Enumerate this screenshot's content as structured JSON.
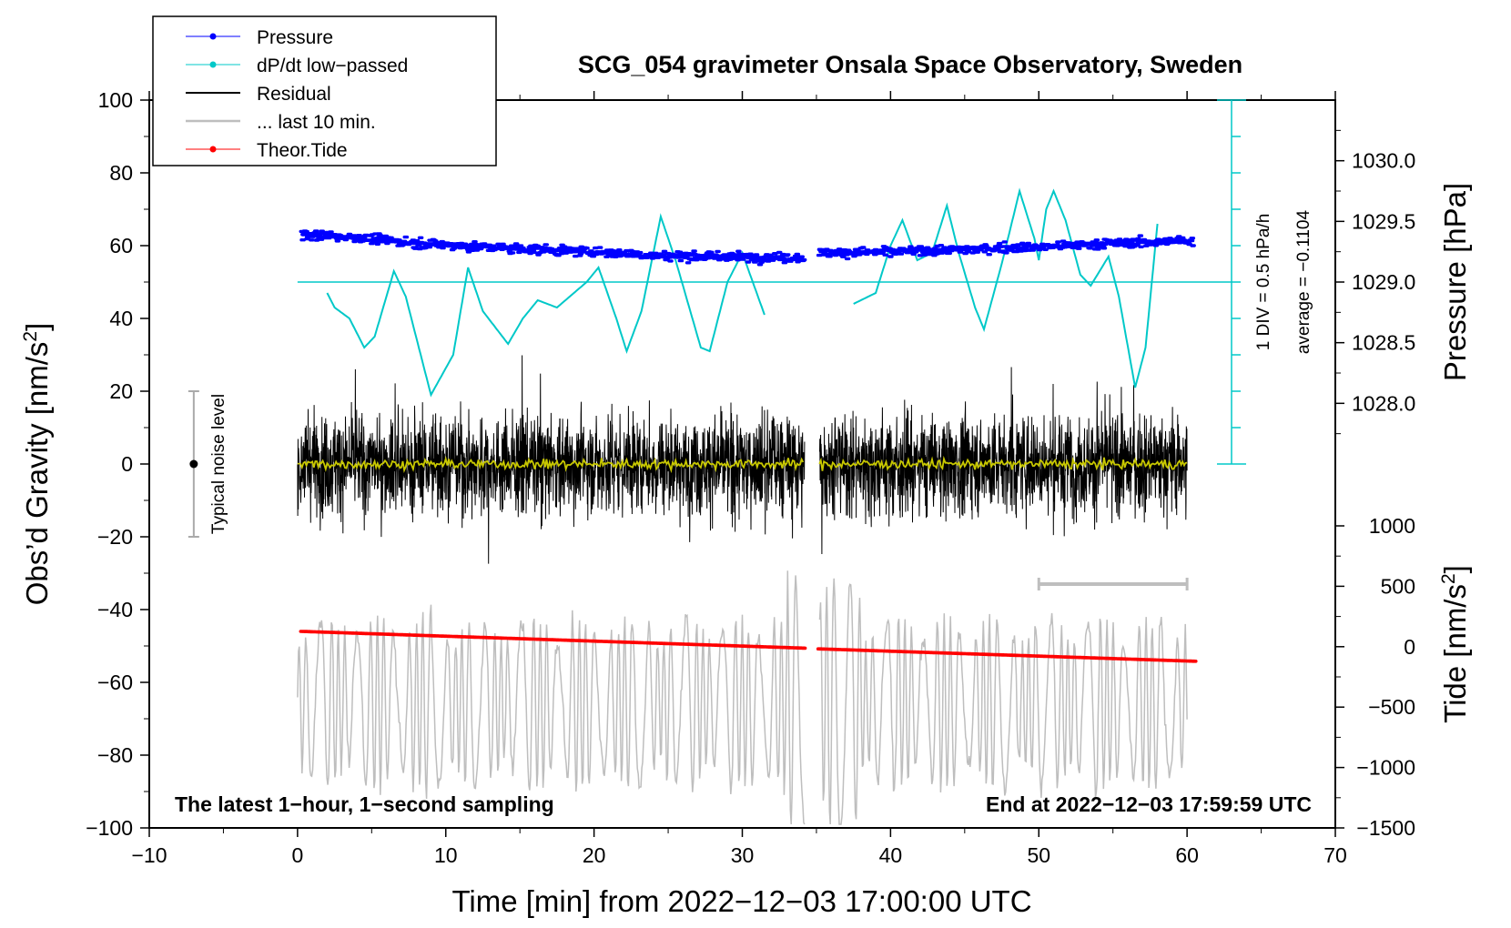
{
  "chart_data": {
    "type": "line",
    "title": "SCG_054 gravimeter Onsala Space Observatory, Sweden",
    "xlabel": "Time [min] from 2022−12−03 17:00:00 UTC",
    "ylabel_left": "Obs’d Gravity [nm/s",
    "ylabel_left_sup": "2",
    "ylabel_left_end": "]",
    "ylabel_right_top": "Pressure [hPa]",
    "ylabel_right_bottom": "Tide [nm/s",
    "ylabel_right_bottom_sup": "2",
    "ylabel_right_bottom_end": "]",
    "xlim": [
      -10,
      70
    ],
    "ylim": [
      -100,
      100
    ],
    "x_ticks": [
      -10,
      0,
      10,
      20,
      30,
      40,
      50,
      60,
      70
    ],
    "x_tick_labels": [
      "−10",
      "0",
      "10",
      "20",
      "30",
      "40",
      "50",
      "60",
      "70"
    ],
    "y_ticks": [
      100,
      80,
      60,
      40,
      20,
      0,
      -20,
      -40,
      -60,
      -80,
      -100
    ],
    "y_tick_labels": [
      "100",
      "80",
      "60",
      "40",
      "20",
      "0",
      "−20",
      "−40",
      "−60",
      "−80",
      "−100"
    ],
    "pressure_ticks": [
      1030.0,
      1029.5,
      1029.0,
      1028.5,
      1028.0
    ],
    "pressure_tick_labels": [
      "1030.0",
      "1029.5",
      "1029.0",
      "1028.5",
      "1028.0"
    ],
    "pressure_axis_map": {
      "p1": 1029.0,
      "g1": 50,
      "p2": 1030.0,
      "g2": 83.33
    },
    "tide_ticks": [
      1000,
      500,
      0,
      -500,
      -1000,
      -1500
    ],
    "tide_tick_labels": [
      "1000",
      "500",
      "0",
      "−500",
      "−1000",
      "−1500"
    ],
    "tide_axis_map": {
      "t1": -1500,
      "g1": -100,
      "t2": 1000,
      "g2": -17
    },
    "legend": [
      {
        "label": "Pressure",
        "color": "#0000ff",
        "marker": true
      },
      {
        "label": "dP/dt low−passed",
        "color": "#00c8c8",
        "marker": true
      },
      {
        "label": "Residual",
        "color": "#000000",
        "marker": false
      },
      {
        "label": "... last 10 min.",
        "color": "#bebebe",
        "marker": false
      },
      {
        "label": "Theor.Tide",
        "color": "#ff0000",
        "marker": true
      }
    ],
    "gap_minutes": [
      34.2,
      35.2
    ],
    "series": [
      {
        "name": "Pressure",
        "color": "#0000ff",
        "unit": "hPa",
        "x_range": [
          0.3,
          60.4
        ],
        "keypoints": [
          [
            0.3,
            1029.39
          ],
          [
            4.0,
            1029.37
          ],
          [
            8.0,
            1029.32
          ],
          [
            14.0,
            1029.28
          ],
          [
            20.0,
            1029.25
          ],
          [
            24.0,
            1029.22
          ],
          [
            28.0,
            1029.21
          ],
          [
            34.2,
            1029.2
          ],
          [
            35.2,
            1029.24
          ],
          [
            40.0,
            1029.25
          ],
          [
            45.0,
            1029.27
          ],
          [
            50.0,
            1029.29
          ],
          [
            55.0,
            1029.32
          ],
          [
            60.4,
            1029.34
          ]
        ]
      },
      {
        "name": "dP/dt low−passed",
        "color": "#00c8c8",
        "unit": "nm/s2 plot units",
        "x_ranges": [
          [
            2.0,
            31.5
          ],
          [
            37.5,
            58.0
          ]
        ],
        "keypoints": [
          [
            2.0,
            47
          ],
          [
            2.5,
            43
          ],
          [
            3.5,
            40
          ],
          [
            4.5,
            32
          ],
          [
            5.2,
            35
          ],
          [
            6.5,
            53
          ],
          [
            7.3,
            46
          ],
          [
            9.0,
            19
          ],
          [
            10.5,
            30
          ],
          [
            11.5,
            54
          ],
          [
            12.5,
            42
          ],
          [
            14.2,
            33
          ],
          [
            15.2,
            40
          ],
          [
            16.2,
            45
          ],
          [
            17.5,
            43
          ],
          [
            19.5,
            50
          ],
          [
            20.3,
            54
          ],
          [
            21.5,
            40
          ],
          [
            22.2,
            31
          ],
          [
            23.2,
            42
          ],
          [
            24.5,
            68
          ],
          [
            25.5,
            56
          ],
          [
            27.2,
            32
          ],
          [
            27.8,
            31
          ],
          [
            29.0,
            50
          ],
          [
            30.0,
            58
          ],
          [
            31.5,
            41
          ],
          [
            37.5,
            44
          ],
          [
            39.0,
            47
          ],
          [
            40.0,
            60
          ],
          [
            40.8,
            67
          ],
          [
            41.8,
            56
          ],
          [
            42.8,
            58
          ],
          [
            43.8,
            71
          ],
          [
            44.6,
            58
          ],
          [
            45.7,
            43
          ],
          [
            46.3,
            37
          ],
          [
            47.5,
            55
          ],
          [
            48.7,
            75
          ],
          [
            49.7,
            62
          ],
          [
            50.0,
            56
          ],
          [
            50.5,
            70
          ],
          [
            51.0,
            75
          ],
          [
            51.8,
            67
          ],
          [
            52.8,
            52
          ],
          [
            53.5,
            49
          ],
          [
            54.7,
            57
          ],
          [
            55.4,
            46
          ],
          [
            56.5,
            21
          ],
          [
            57.2,
            32
          ],
          [
            58.0,
            66
          ]
        ]
      },
      {
        "name": "Residual",
        "color": "#000000",
        "unit": "nm/s2",
        "x_range": [
          0.0,
          60.0
        ],
        "envelope": [
          -37,
          36
        ]
      },
      {
        "name": "Residual smoothed",
        "color": "#c8c800",
        "unit": "nm/s2",
        "x_range": [
          0.0,
          60.0
        ],
        "envelope": [
          -3,
          3
        ]
      },
      {
        "name": "... last 10 min.",
        "color": "#bebebe",
        "unit": "nm/s2 plot units",
        "x_range": [
          0.0,
          60.0
        ],
        "center": -66,
        "envelope": [
          -99,
          -28
        ]
      },
      {
        "name": "Theor.Tide",
        "color": "#ff0000",
        "unit": "nm/s2",
        "keypoints": [
          [
            0.3,
            -46
          ],
          [
            34.2,
            -50.6
          ],
          [
            35.2,
            -50.8
          ],
          [
            60.5,
            -54.2
          ]
        ]
      }
    ],
    "annotations": {
      "noise_bar_label": "Typical noise level",
      "noise_bar_range": [
        -20,
        20
      ],
      "noise_bar_x": -7,
      "div_label": "1 DIV = 0.5 hPa/h",
      "average_label": "average = −0.1104",
      "dpdt_baseline": 50,
      "div_axis_x": 63,
      "div_axis_range": [
        0,
        100
      ],
      "last10_bar": [
        50,
        60,
        -33
      ],
      "bottom_left": "The latest 1−hour, 1−second sampling",
      "bottom_right": "End at 2022−12−03 17:59:59 UTC"
    }
  }
}
